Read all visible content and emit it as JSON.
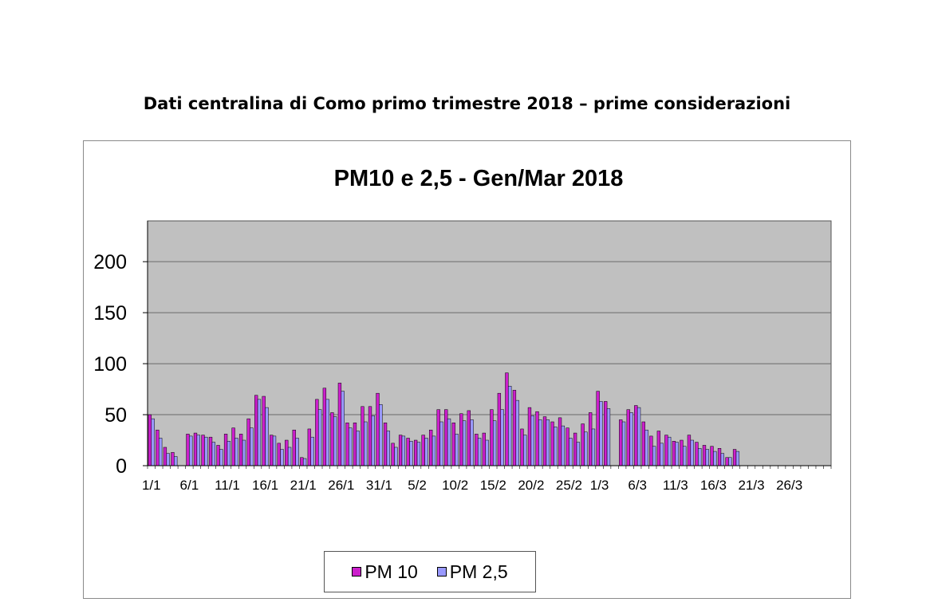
{
  "page": {
    "title": "Dati centralina di Como  primo trimestre 2018 – prime considerazioni"
  },
  "chart_data": {
    "type": "bar",
    "title": "PM10 e 2,5 - Gen/Mar 2018",
    "xlabel": "",
    "ylabel": "",
    "ylim": [
      0,
      240
    ],
    "yticks": [
      0,
      50,
      100,
      150,
      200
    ],
    "grid": true,
    "legend_position": "bottom",
    "colors": {
      "plot_bg": "#c0c0c0",
      "pm10": "#cc1fcc",
      "pm25": "#9999ff"
    },
    "tick_labels": [
      "1/1",
      "6/1",
      "11/1",
      "16/1",
      "21/1",
      "26/1",
      "31/1",
      "5/2",
      "10/2",
      "15/2",
      "20/2",
      "25/2",
      "1/3",
      "6/3",
      "11/3",
      "16/3",
      "21/3",
      "26/3"
    ],
    "categories": [
      "1/1",
      "2/1",
      "3/1",
      "4/1",
      "5/1",
      "6/1",
      "7/1",
      "8/1",
      "9/1",
      "10/1",
      "11/1",
      "12/1",
      "13/1",
      "14/1",
      "15/1",
      "16/1",
      "17/1",
      "18/1",
      "19/1",
      "20/1",
      "21/1",
      "22/1",
      "23/1",
      "24/1",
      "25/1",
      "26/1",
      "27/1",
      "28/1",
      "29/1",
      "30/1",
      "31/1",
      "1/2",
      "2/2",
      "3/2",
      "4/2",
      "5/2",
      "6/2",
      "7/2",
      "8/2",
      "9/2",
      "10/2",
      "11/2",
      "12/2",
      "13/2",
      "14/2",
      "15/2",
      "16/2",
      "17/2",
      "18/2",
      "19/2",
      "20/2",
      "21/2",
      "22/2",
      "23/2",
      "24/2",
      "25/2",
      "26/2",
      "27/2",
      "28/2",
      "1/3",
      "2/3",
      "3/3",
      "4/3",
      "5/3",
      "6/3",
      "7/3",
      "8/3",
      "9/3",
      "10/3",
      "11/3",
      "12/3",
      "13/3",
      "14/3",
      "15/3",
      "16/3",
      "17/3",
      "18/3",
      "19/3",
      "20/3",
      "21/3",
      "22/3",
      "23/3",
      "24/3",
      "25/3",
      "26/3",
      "27/3",
      "28/3",
      "29/3",
      "30/3",
      "31/3"
    ],
    "series": [
      {
        "name": "PM 10",
        "values": [
          50,
          35,
          18,
          13,
          null,
          31,
          32,
          30,
          28,
          20,
          31,
          37,
          31,
          46,
          69,
          68,
          30,
          22,
          25,
          35,
          8,
          36,
          65,
          76,
          52,
          81,
          42,
          42,
          58,
          58,
          71,
          42,
          22,
          30,
          27,
          25,
          30,
          35,
          55,
          55,
          42,
          51,
          54,
          31,
          32,
          55,
          71,
          91,
          74,
          36,
          57,
          53,
          48,
          43,
          47,
          37,
          32,
          41,
          52,
          73,
          63,
          null,
          45,
          55,
          59,
          43,
          29,
          34,
          30,
          24,
          25,
          30,
          23,
          20,
          19,
          17,
          8,
          16,
          null,
          null,
          null,
          null,
          null,
          null,
          null,
          null,
          null,
          null,
          null,
          null
        ]
      },
      {
        "name": "PM 2,5",
        "values": [
          46,
          27,
          12,
          9,
          null,
          29,
          30,
          28,
          23,
          16,
          24,
          27,
          25,
          37,
          65,
          57,
          29,
          16,
          18,
          27,
          7,
          28,
          55,
          65,
          48,
          73,
          37,
          34,
          43,
          49,
          60,
          34,
          18,
          29,
          24,
          23,
          27,
          29,
          43,
          46,
          31,
          44,
          45,
          27,
          25,
          44,
          55,
          78,
          64,
          30,
          49,
          45,
          45,
          38,
          39,
          27,
          23,
          33,
          36,
          63,
          56,
          null,
          43,
          52,
          57,
          35,
          19,
          22,
          28,
          23,
          19,
          25,
          17,
          16,
          14,
          12,
          8,
          14,
          null,
          null,
          null,
          null,
          null,
          null,
          null,
          null,
          null,
          null,
          null,
          null
        ]
      }
    ]
  }
}
